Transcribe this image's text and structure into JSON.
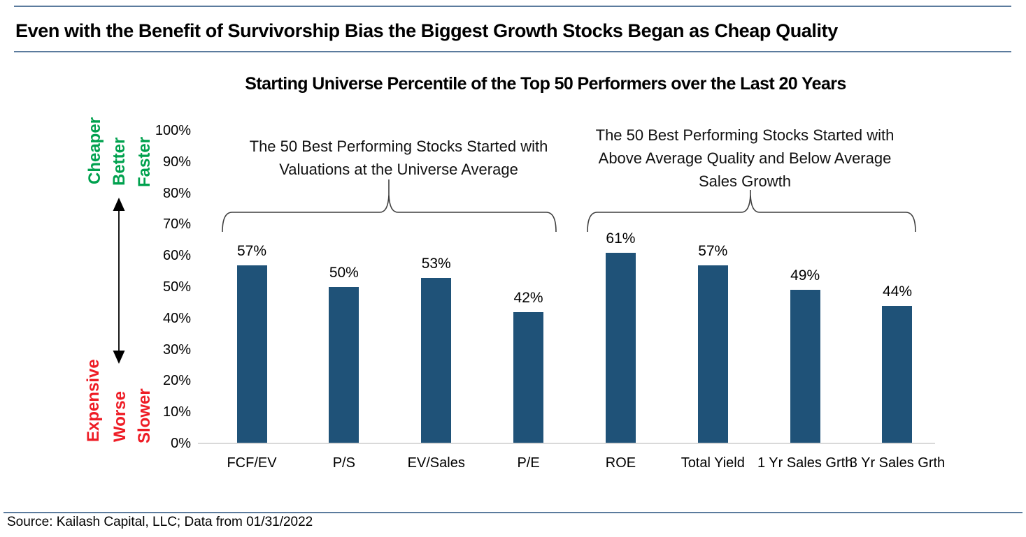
{
  "header": {
    "title": "Even with the Benefit of Survivorship Bias the Biggest Growth Stocks Began as Cheap Quality"
  },
  "chart": {
    "title": "Starting Universe Percentile of the Top 50 Performers over the Last 20 Years",
    "y_ticks": [
      "100%",
      "90%",
      "80%",
      "70%",
      "60%",
      "50%",
      "40%",
      "30%",
      "20%",
      "10%",
      "0%"
    ],
    "direction_up_words": [
      "Cheaper",
      "Better",
      "Faster"
    ],
    "direction_down_words": [
      "Expensive",
      "Worse",
      "Slower"
    ],
    "left_annotation": [
      "The 50 Best Performing Stocks Started with",
      "Valuations at the Universe Average"
    ],
    "right_annotation": [
      "The 50 Best Performing Stocks Started with",
      "Above Average Quality and Below Average",
      "Sales Growth"
    ],
    "colors": {
      "bar": "#1F5278",
      "up_green": "#00A14E",
      "down_red": "#EE1C25",
      "rule_blue": "#5b7b9d",
      "axis_gray": "#d9d9d9"
    }
  },
  "chart_data": {
    "type": "bar",
    "title": "Starting Universe Percentile of the Top 50 Performers over the Last 20 Years",
    "categories": [
      "FCF/EV",
      "P/S",
      "EV/Sales",
      "P/E",
      "ROE",
      "Total Yield",
      "1 Yr Sales Grth",
      "3 Yr Sales Grth"
    ],
    "values": [
      57,
      50,
      53,
      42,
      61,
      57,
      49,
      44
    ],
    "data_labels": [
      "57%",
      "50%",
      "53%",
      "42%",
      "61%",
      "57%",
      "49%",
      "44%"
    ],
    "xlabel": "",
    "ylabel": "",
    "ylim": [
      0,
      100
    ],
    "y_tick_step": 10,
    "grid": false,
    "legend": "none",
    "groups": [
      {
        "members": [
          "FCF/EV",
          "P/S",
          "EV/Sales",
          "P/E"
        ],
        "note": "The 50 Best Performing Stocks Started with Valuations at the Universe Average"
      },
      {
        "members": [
          "ROE",
          "Total Yield",
          "1 Yr Sales Grth",
          "3 Yr Sales Grth"
        ],
        "note": "The 50 Best Performing Stocks Started with Above Average Quality and Below Average Sales Growth"
      }
    ]
  },
  "footer": {
    "source": "Source: Kailash Capital, LLC; Data from 01/31/2022"
  }
}
